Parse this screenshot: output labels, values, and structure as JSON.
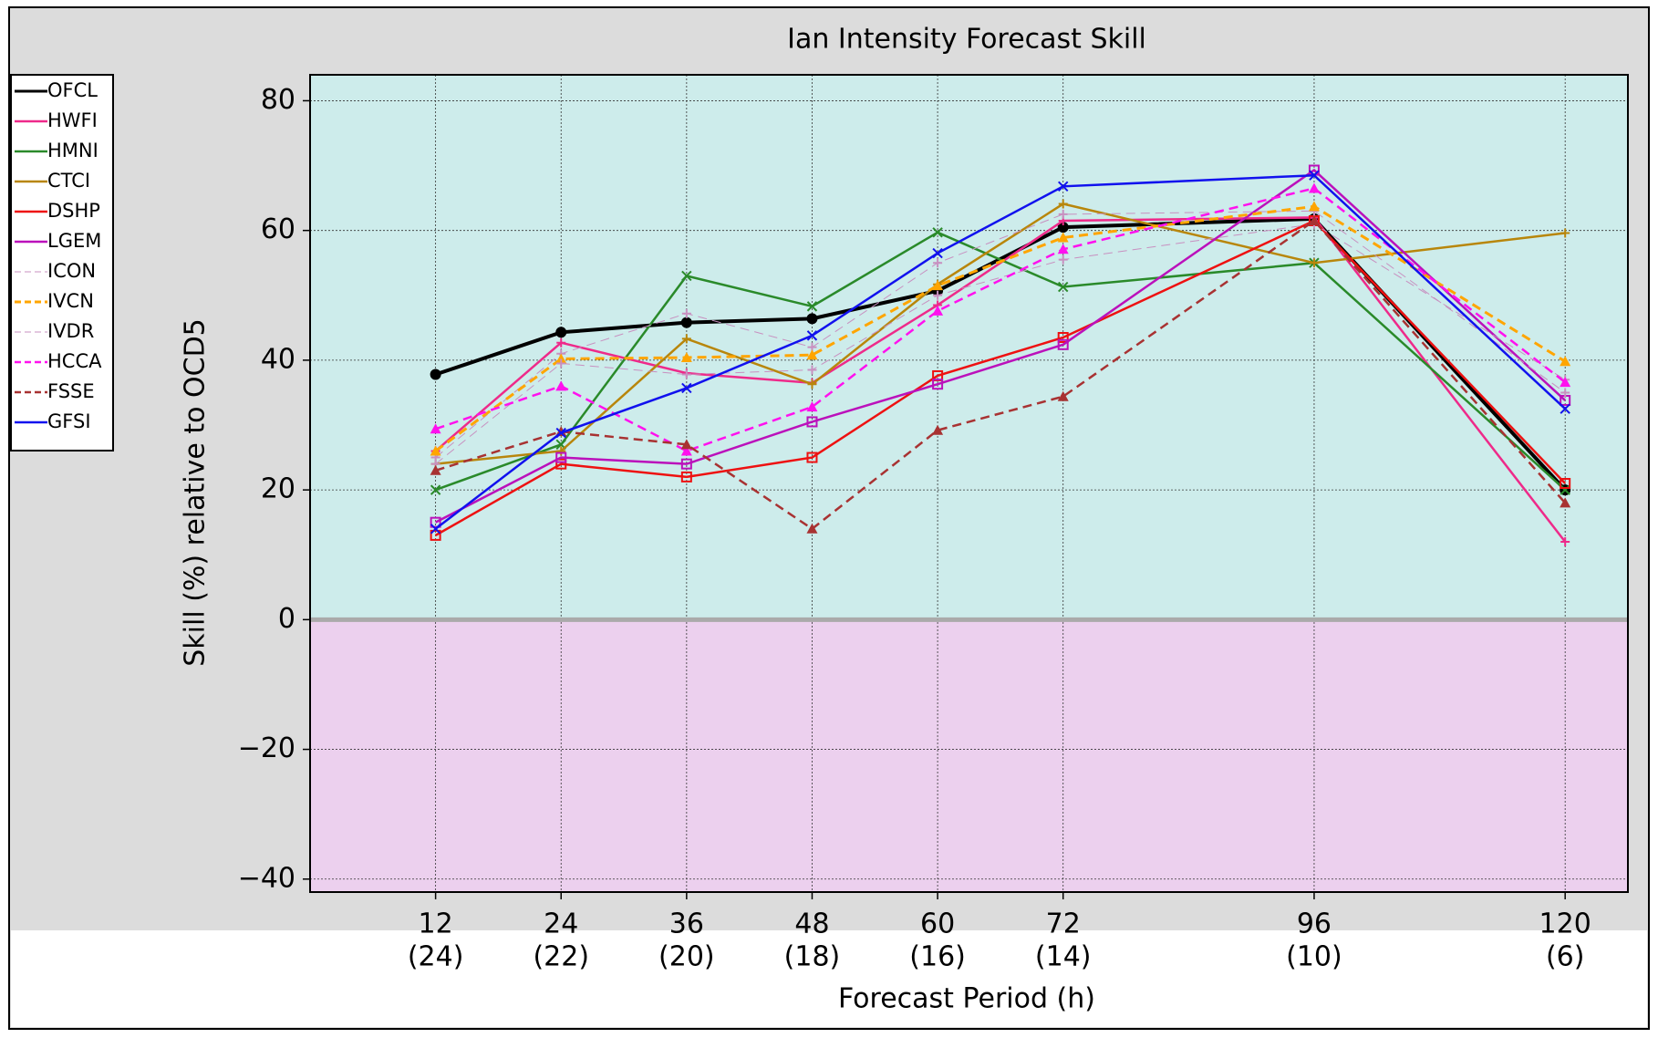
{
  "chart_data": {
    "type": "line",
    "title": "Ian Intensity Forecast Skill",
    "ylabel": "Skill (%) relative to OCD5",
    "xlabel": "Forecast Period (h)",
    "x": [
      12,
      24,
      36,
      48,
      60,
      72,
      96,
      120
    ],
    "xlim": [
      0,
      126
    ],
    "ylim": [
      -42,
      84
    ],
    "xticks": [
      12,
      24,
      36,
      48,
      60,
      72,
      96,
      120
    ],
    "xtick_sublabels": [
      "(24)",
      "(22)",
      "(20)",
      "(18)",
      "(16)",
      "(14)",
      "(10)",
      "(6)"
    ],
    "yticks": [
      -40,
      -20,
      0,
      20,
      40,
      60,
      80
    ],
    "yticks_labels": [
      {
        "value": -40,
        "label": "−40"
      },
      {
        "value": -20,
        "label": "−20"
      }
    ],
    "grid": true,
    "legend": "left",
    "series": [
      {
        "name": "OFCL",
        "color": "#000000",
        "width": 4,
        "marker": "circle",
        "values": [
          37.8,
          44.3,
          45.8,
          46.4,
          50.7,
          60.5,
          61.8,
          20
        ]
      },
      {
        "name": "HWFI",
        "color": "#ee2a8a",
        "width": 2.5,
        "marker": "plus",
        "values": [
          26,
          42.7,
          38,
          36.5,
          48.5,
          61.5,
          62,
          12
        ]
      },
      {
        "name": "HMNI",
        "color": "#2a8a2a",
        "width": 2.5,
        "marker": "x",
        "values": [
          20,
          27,
          53,
          48.3,
          59.7,
          51.3,
          55,
          20
        ]
      },
      {
        "name": "CTCI",
        "color": "#b8860b",
        "width": 2.5,
        "marker": "plus",
        "values": [
          24,
          26,
          43.3,
          36.3,
          51.7,
          64.1,
          55,
          59.6
        ]
      },
      {
        "name": "DSHP",
        "color": "#ee1111",
        "width": 2.5,
        "marker": "square",
        "values": [
          13,
          24,
          22,
          25,
          37.6,
          43.5,
          61.5,
          21
        ]
      },
      {
        "name": "LGEM",
        "color": "#bb11bb",
        "width": 2.5,
        "marker": "square",
        "values": [
          15,
          25,
          24,
          30.5,
          36.3,
          42.4,
          69.3,
          33.8
        ]
      },
      {
        "name": "ICON",
        "color": "#c890c0",
        "width": 1,
        "dash": true,
        "marker": "plus",
        "values": [
          25,
          41,
          47.2,
          42,
          55,
          62.5,
          63,
          35
        ]
      },
      {
        "name": "IVCN",
        "color": "#ffa500",
        "width": 3,
        "dash": true,
        "marker": "triangle",
        "values": [
          26,
          40.2,
          40.4,
          40.8,
          51.5,
          58.9,
          63.7,
          39.8
        ]
      },
      {
        "name": "IVDR",
        "color": "#c890c0",
        "width": 1,
        "dash": true,
        "marker": "plus",
        "values": [
          24,
          39.5,
          37.8,
          38.5,
          50,
          55.5,
          61,
          37
        ]
      },
      {
        "name": "HCCA",
        "color": "#ff11ee",
        "width": 2.5,
        "dash": true,
        "marker": "triangle",
        "values": [
          29.4,
          36,
          26,
          32.8,
          47.6,
          57.1,
          66.5,
          36.6
        ]
      },
      {
        "name": "FSSE",
        "color": "#a83232",
        "width": 2.5,
        "dash": true,
        "marker": "triangle",
        "values": [
          23,
          29,
          27,
          14,
          29.2,
          34.4,
          61.5,
          18
        ]
      },
      {
        "name": "GFSI",
        "color": "#1111ee",
        "width": 2.5,
        "marker": "x",
        "values": [
          14,
          28.8,
          35.7,
          43.8,
          56.5,
          66.8,
          68.5,
          32.5
        ]
      }
    ]
  }
}
